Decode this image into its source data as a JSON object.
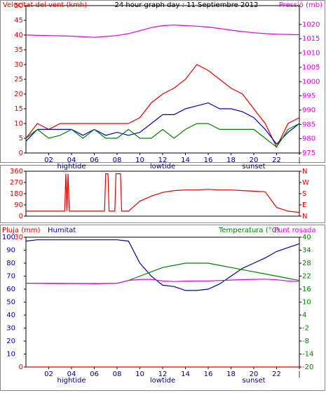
{
  "chart_data": [
    {
      "type": "line",
      "title": "24 hour graph day : 11 Septiembre 2012",
      "ylabel": "Velocitat del vent (kmh)",
      "y2label": "Pressió (mb)",
      "x": [
        0,
        1,
        2,
        3,
        4,
        5,
        6,
        7,
        8,
        9,
        10,
        11,
        12,
        13,
        14,
        15,
        16,
        17,
        18,
        19,
        20,
        21,
        22,
        23,
        24
      ],
      "xlim": [
        0,
        24
      ],
      "xticks": [
        {
          "value": 2,
          "label": "02"
        },
        {
          "value": 4,
          "label": "04"
        },
        {
          "value": 6,
          "label": "06"
        },
        {
          "value": 8,
          "label": "08"
        },
        10,
        12,
        14,
        16,
        18,
        20,
        22,
        {
          "value": 24,
          "label": "|"
        }
      ],
      "annotations": [
        {
          "text": "hightide",
          "x": 4
        },
        {
          "text": "lowtide",
          "x": 12
        },
        {
          "text": "sunset",
          "x": 20
        }
      ],
      "ylim": [
        0,
        50
      ],
      "yticks": [
        0,
        5,
        10,
        15,
        20,
        25,
        30,
        35,
        40,
        45,
        50
      ],
      "y2lim": [
        975,
        1026.6
      ],
      "y2ticks": [
        975,
        980,
        985,
        990,
        995,
        1000,
        1005,
        1010,
        1015,
        1020
      ],
      "series": [
        {
          "color": "#e00000",
          "values": [
            5,
            10,
            8,
            10,
            10,
            10,
            10,
            10,
            10,
            10,
            12,
            17,
            20,
            22,
            25,
            30,
            28,
            25,
            22,
            20,
            15,
            10,
            2,
            10,
            12
          ]
        },
        {
          "color": "#0000c0",
          "values": [
            4,
            8,
            8,
            8,
            8,
            6,
            8,
            6,
            7,
            6,
            7,
            10,
            13,
            13,
            15,
            16,
            17,
            15,
            15,
            14,
            12,
            8,
            3,
            7,
            10
          ]
        },
        {
          "color": "#008000",
          "values": [
            5,
            8,
            5,
            6,
            8,
            5,
            8,
            5,
            5,
            8,
            5,
            5,
            8,
            5,
            8,
            10,
            10,
            8,
            8,
            8,
            8,
            5,
            2,
            8,
            10
          ]
        },
        {
          "color": "#e000e0",
          "axis": "y2",
          "values": [
            1016.3,
            1016.2,
            1016.1,
            1016,
            1015.9,
            1015.7,
            1015.5,
            1015.8,
            1016.1,
            1016.8,
            1017.8,
            1018.9,
            1019.6,
            1019.8,
            1019.6,
            1019.4,
            1019.1,
            1018.6,
            1018,
            1017.5,
            1017.1,
            1016.8,
            1016.6,
            1016.5,
            1016.4
          ]
        }
      ]
    },
    {
      "type": "line",
      "x": [
        0,
        3.4,
        3.5,
        3.6,
        3.7,
        3.8,
        4,
        6.9,
        7,
        7.2,
        7.3,
        7.8,
        7.9,
        8.3,
        8.4,
        9,
        10,
        11,
        12,
        13,
        14,
        15,
        16,
        17,
        18,
        19,
        20,
        21,
        22,
        23,
        24
      ],
      "xlim": [
        0,
        24
      ],
      "ylim": [
        0,
        360
      ],
      "yticks": [
        0,
        90,
        180,
        270,
        360
      ],
      "y2lim": [
        0,
        360
      ],
      "y2ticks": [
        {
          "value": 360,
          "label": "N"
        },
        {
          "value": 270,
          "label": "W"
        },
        {
          "value": 180,
          "label": "S"
        },
        {
          "value": 90,
          "label": "E"
        },
        {
          "value": 0,
          "label": "N"
        }
      ],
      "series": [
        {
          "color": "#e00000",
          "values": [
            40,
            40,
            340,
            40,
            340,
            40,
            40,
            40,
            340,
            340,
            40,
            40,
            340,
            340,
            40,
            40,
            120,
            160,
            190,
            205,
            210,
            210,
            215,
            210,
            210,
            205,
            200,
            195,
            70,
            40,
            30
          ]
        }
      ]
    },
    {
      "type": "line",
      "x": [
        0,
        1,
        2,
        3,
        4,
        5,
        6,
        7,
        8,
        9,
        10,
        11,
        12,
        13,
        14,
        15,
        16,
        17,
        18,
        19,
        20,
        21,
        22,
        23,
        24
      ],
      "xlim": [
        0,
        24
      ],
      "xticks": [
        {
          "value": 2,
          "label": "02"
        },
        {
          "value": 4,
          "label": "04"
        },
        {
          "value": 6,
          "label": "06"
        },
        {
          "value": 8,
          "label": "08"
        },
        10,
        12,
        14,
        16,
        18,
        20,
        22,
        {
          "value": 24,
          "label": "|"
        }
      ],
      "annotations": [
        {
          "text": "hightide",
          "x": 4
        },
        {
          "text": "lowtide",
          "x": 12
        },
        {
          "text": "sunset",
          "x": 20
        }
      ],
      "ylim": [
        0,
        100
      ],
      "yticks": [
        10,
        20,
        30,
        40,
        50,
        60,
        70,
        80,
        90,
        100
      ],
      "y2lim": [
        -20,
        40
      ],
      "y2ticks": [
        -20,
        -14,
        -8,
        -2,
        4,
        10,
        16,
        22,
        28,
        34,
        40
      ],
      "y3lim": [
        0,
        30
      ],
      "y3ticks": [
        0,
        30
      ],
      "series": [
        {
          "name": "Pluja (mm)",
          "color": "#e00000",
          "axis": "y3",
          "values": [
            0,
            0,
            0,
            0,
            0,
            0,
            0,
            0,
            0,
            0,
            0,
            0,
            0,
            0,
            0,
            0,
            0,
            0,
            0,
            0,
            0,
            0,
            0,
            0,
            0
          ]
        },
        {
          "name": "Humitat",
          "color": "#0000a0",
          "values": [
            97,
            98,
            98,
            98,
            98,
            98,
            98,
            98,
            98,
            97,
            80,
            70,
            63,
            62,
            59,
            59,
            60,
            64,
            70,
            76,
            80,
            84,
            89,
            92,
            95
          ]
        },
        {
          "name": "Temperatura (°C)",
          "color": "#008000",
          "axis": "y2",
          "values": [
            18.7,
            18.7,
            18.7,
            18.7,
            18.6,
            18.6,
            18.6,
            18.6,
            18.7,
            20,
            22,
            24,
            26,
            27,
            28,
            28,
            28,
            27,
            26,
            25,
            24,
            23,
            22,
            21,
            20
          ]
        },
        {
          "name": "Punt rosada",
          "color": "#e000e0",
          "axis": "y2",
          "values": [
            18.7,
            18.7,
            18.6,
            18.6,
            18.6,
            18.6,
            18.5,
            18.6,
            18.7,
            20,
            20.5,
            20.5,
            19.8,
            19.5,
            19.7,
            19.8,
            19.8,
            20,
            20.2,
            20.4,
            20.5,
            20.6,
            20.3,
            19.8,
            19.5
          ]
        }
      ]
    }
  ]
}
